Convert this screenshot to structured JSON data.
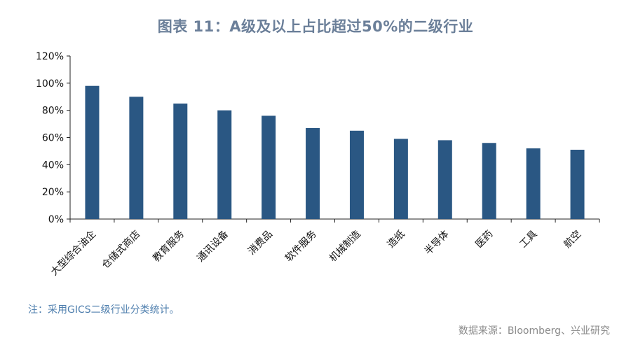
{
  "chart_data": {
    "type": "bar",
    "title": "图表 11：A级及以上占比超过50%的二级行业",
    "categories": [
      "大型综合油企",
      "仓储式商店",
      "教育服务",
      "通讯设备",
      "消费品",
      "软件服务",
      "机械制造",
      "造纸",
      "半导体",
      "医药",
      "工具",
      "航空"
    ],
    "values": [
      98,
      90,
      85,
      80,
      76,
      67,
      65,
      59,
      58,
      56,
      52,
      51
    ],
    "ylim": [
      0,
      120
    ],
    "yticks": [
      "0%",
      "20%",
      "40%",
      "60%",
      "80%",
      "100%",
      "120%"
    ],
    "xlabel": "",
    "ylabel": "",
    "bar_color": "#2a5783",
    "grid": false
  },
  "footer": {
    "note": "注：采用GICS二级行业分类统计。",
    "source": "数据来源：Bloomberg、兴业研究"
  }
}
